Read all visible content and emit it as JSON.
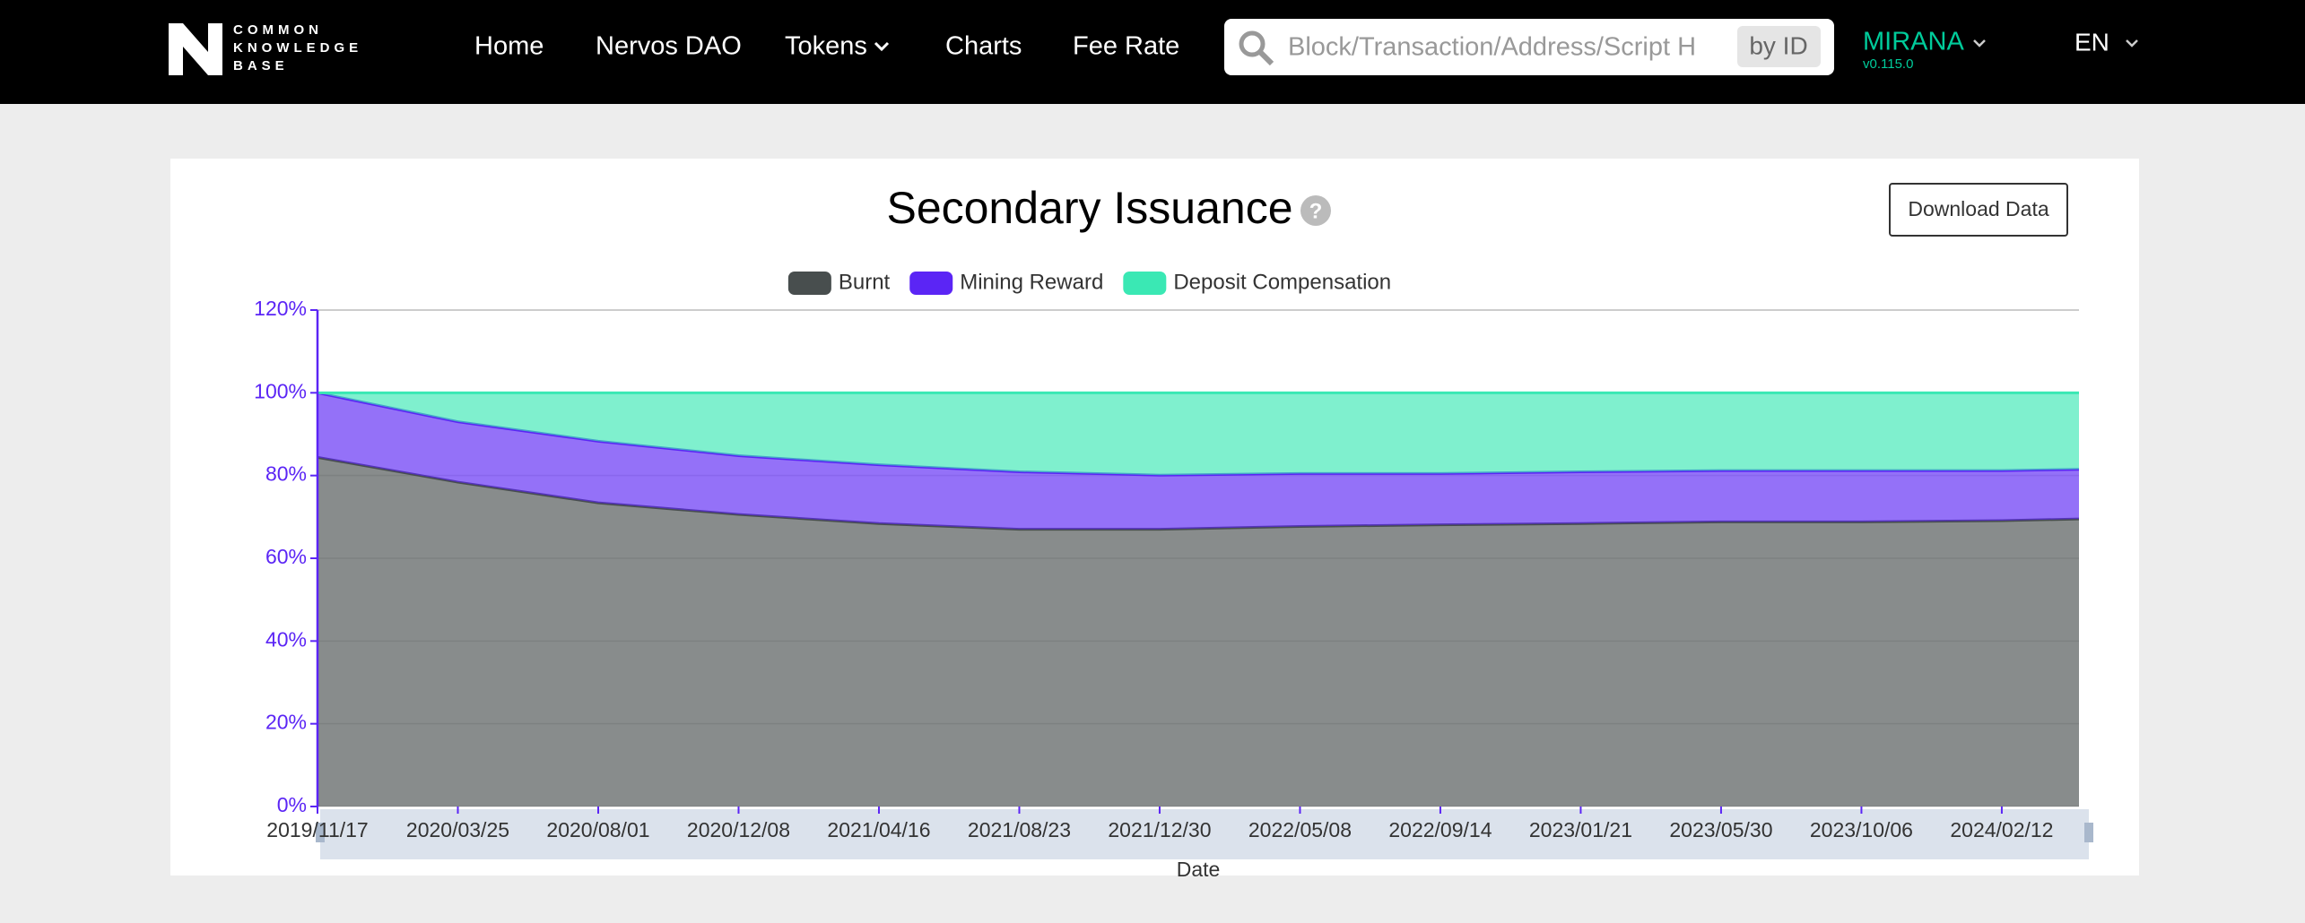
{
  "header": {
    "logo": [
      "COMMON",
      "KNOWLEDGE",
      "BASE"
    ],
    "nav": [
      "Home",
      "Nervos DAO",
      "Tokens",
      "Charts",
      "Fee Rate"
    ],
    "search_placeholder": "Block/Transaction/Address/Script H",
    "search_button": "by ID",
    "network": "MIRANA",
    "version": "v0.115.0",
    "language": "EN"
  },
  "card": {
    "download_button": "Download Data"
  },
  "chart_data": {
    "type": "stacked-area",
    "title": "Secondary Issuance",
    "x_label": "Date",
    "categories": [
      "2019/11/17",
      "2020/03/25",
      "2020/08/01",
      "2020/12/08",
      "2021/04/16",
      "2021/08/23",
      "2021/12/30",
      "2022/05/08",
      "2022/09/14",
      "2023/01/21",
      "2023/05/30",
      "2023/10/06",
      "2024/02/12",
      null
    ],
    "series": [
      {
        "name": "Burnt",
        "color": "#484e4e",
        "values": [
          84.4,
          78.4,
          73.4,
          70.6,
          68.4,
          67,
          67,
          67.7,
          68.1,
          68.4,
          68.8,
          68.8,
          69.1,
          69.5
        ]
      },
      {
        "name": "Mining Reward",
        "color": "#5b25f5",
        "values": [
          15.6,
          14.6,
          14.9,
          14.2,
          14.2,
          13.9,
          13.1,
          12.8,
          12.4,
          12.5,
          12.4,
          12.4,
          12.1,
          12
        ]
      },
      {
        "name": "Deposit Compensation",
        "color": "#3ae8b4",
        "values": [
          0,
          7,
          11.7,
          15.2,
          17.4,
          19.1,
          19.9,
          19.5,
          19.5,
          19.1,
          18.8,
          18.8,
          18.8,
          18.5
        ]
      }
    ],
    "ylim": [
      0,
      120
    ],
    "yticks": [
      {
        "value": 0,
        "label": "0%"
      },
      {
        "value": 20,
        "label": "20%"
      },
      {
        "value": 40,
        "label": "40%"
      },
      {
        "value": 60,
        "label": "60%"
      },
      {
        "value": 80,
        "label": "80%"
      },
      {
        "value": 100,
        "label": "100%"
      },
      {
        "value": 120,
        "label": "120%"
      }
    ],
    "grid": true
  }
}
